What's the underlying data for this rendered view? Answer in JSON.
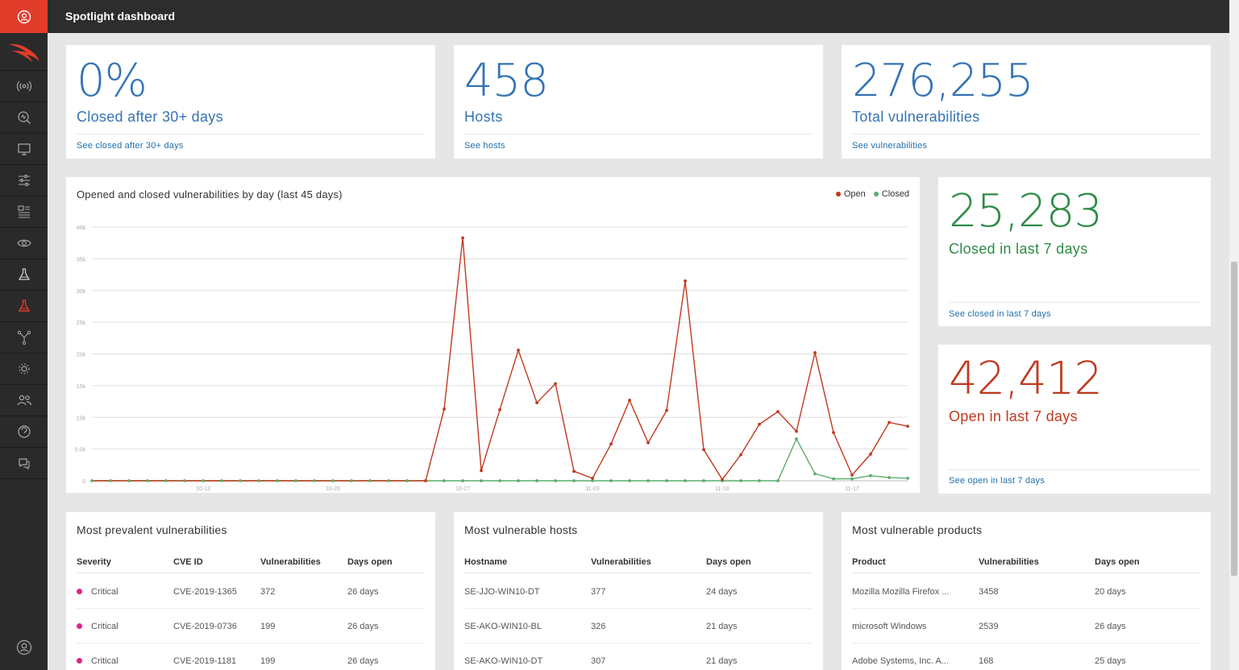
{
  "header": {
    "title": "Spotlight dashboard"
  },
  "sidebar": {
    "icons": [
      "user-circle-icon",
      "crowdstrike-falcon-logo",
      "broadcast-icon",
      "search-activity-icon",
      "monitor-icon",
      "sliders-icon",
      "layout-list-icon",
      "eye-target-icon",
      "flask-icon",
      "flask-active-icon",
      "network-icon",
      "settings-gear-icon",
      "users-icon",
      "support-icon",
      "chat-icon",
      "account-icon"
    ],
    "accent_color": "#e23c2b"
  },
  "stats": {
    "closed_after_30": {
      "value": "0%",
      "label": "Closed after 30+ days",
      "link": "See closed after 30+ days"
    },
    "hosts": {
      "value": "458",
      "label": "Hosts",
      "link": "See hosts"
    },
    "total_vulns": {
      "value": "276,255",
      "label": "Total vulnerabilities",
      "link": "See vulnerabilities"
    },
    "closed_7": {
      "value": "25,283",
      "label": "Closed in last 7 days",
      "link": "See closed in last 7 days"
    },
    "open_7": {
      "value": "42,412",
      "label": "Open in last 7 days",
      "link": "See open in last 7 days"
    }
  },
  "chart": {
    "title": "Opened and closed vulnerabilities by day (last 45 days)",
    "legend": {
      "open": "Open",
      "closed": "Closed"
    }
  },
  "chart_data": {
    "type": "line",
    "ylim": [
      0,
      40000
    ],
    "y_ticks": [
      "40k",
      "35k",
      "30k",
      "25k",
      "20k",
      "15k",
      "10k",
      "5.0k",
      "0"
    ],
    "x_ticks": [
      "10-13",
      "10-20",
      "10-27",
      "11-03",
      "11-10",
      "11-17"
    ],
    "x_tick_positions": [
      6,
      13,
      20,
      27,
      34,
      41
    ],
    "series": [
      {
        "name": "Open",
        "color": "#c0391f",
        "values": [
          0,
          0,
          0,
          0,
          0,
          0,
          0,
          0,
          0,
          0,
          0,
          0,
          0,
          0,
          0,
          0,
          0,
          0,
          0,
          11300,
          38300,
          1600,
          11200,
          20600,
          12300,
          15300,
          1500,
          400,
          5800,
          12700,
          6000,
          11100,
          31500,
          4900,
          200,
          4100,
          8900,
          10900,
          7800,
          20200,
          7600,
          900,
          4200,
          9200,
          8600
        ]
      },
      {
        "name": "Closed",
        "color": "#5cac6e",
        "values": [
          0,
          0,
          0,
          0,
          0,
          0,
          0,
          0,
          0,
          0,
          0,
          0,
          0,
          0,
          0,
          0,
          0,
          0,
          0,
          0,
          0,
          0,
          0,
          0,
          0,
          0,
          0,
          0,
          0,
          0,
          0,
          0,
          0,
          0,
          0,
          0,
          0,
          0,
          6600,
          1100,
          300,
          300,
          800,
          500,
          400
        ]
      }
    ]
  },
  "prevalent": {
    "title": "Most prevalent vulnerabilities",
    "headers": [
      "Severity",
      "CVE ID",
      "Vulnerabilities",
      "Days open"
    ],
    "rows": [
      [
        "Critical",
        "CVE-2019-1365",
        "372",
        "26 days"
      ],
      [
        "Critical",
        "CVE-2019-0736",
        "199",
        "26 days"
      ],
      [
        "Critical",
        "CVE-2019-1181",
        "199",
        "26 days"
      ]
    ]
  },
  "hosts_table": {
    "title": "Most vulnerable hosts",
    "headers": [
      "Hostname",
      "Vulnerabilities",
      "Days open"
    ],
    "rows": [
      [
        "SE-JJO-WIN10-DT",
        "377",
        "24 days"
      ],
      [
        "SE-AKO-WIN10-BL",
        "326",
        "21 days"
      ],
      [
        "SE-AKO-WIN10-DT",
        "307",
        "21 days"
      ]
    ]
  },
  "products_table": {
    "title": "Most vulnerable products",
    "headers": [
      "Product",
      "Vulnerabilities",
      "Days open"
    ],
    "rows": [
      [
        "Mozilla Mozilla Firefox ...",
        "3458",
        "20 days"
      ],
      [
        "microsoft Windows",
        "2539",
        "26 days"
      ],
      [
        "Adobe Systems, Inc. A...",
        "168",
        "25 days"
      ]
    ]
  }
}
